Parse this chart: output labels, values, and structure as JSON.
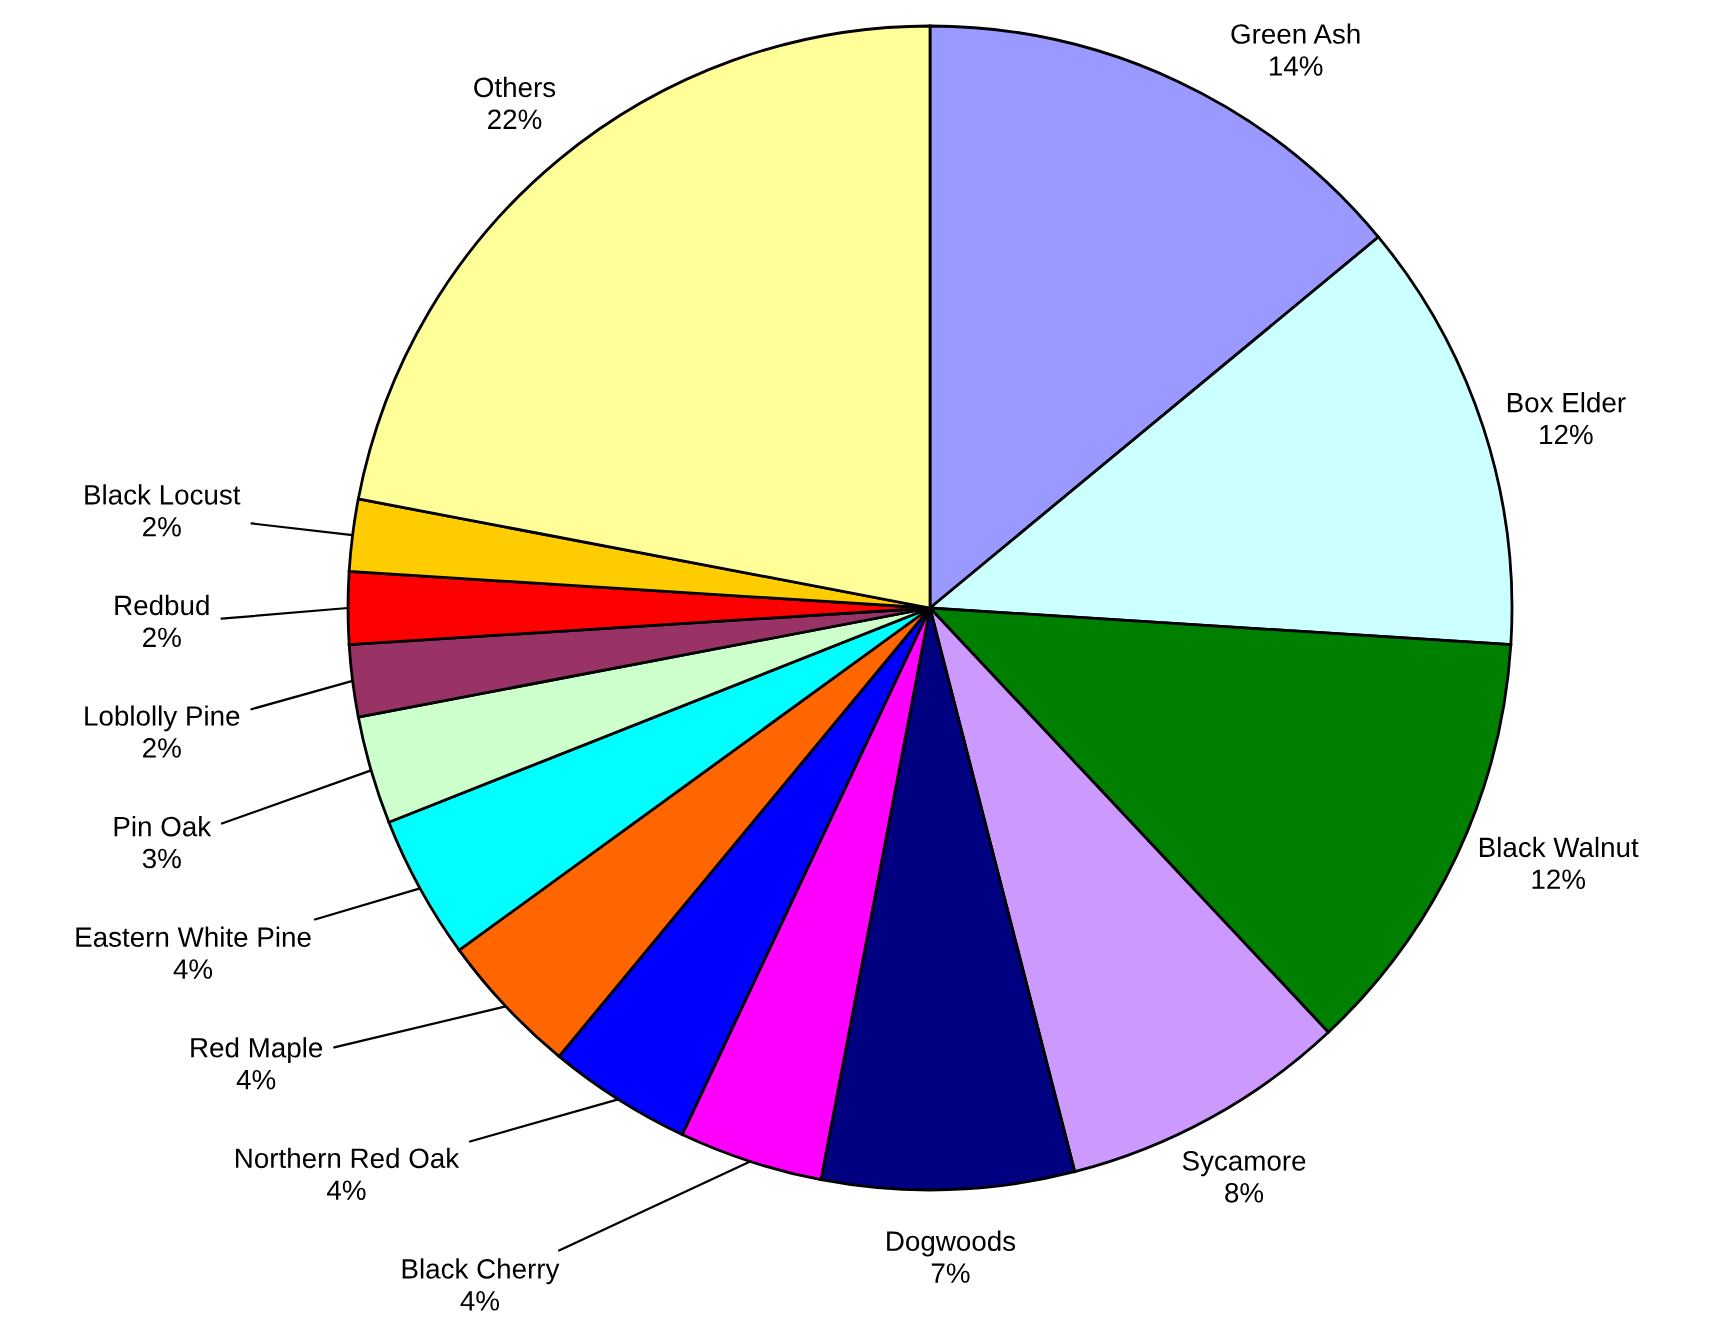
{
  "chart_data": {
    "type": "pie",
    "categories": [
      "Green Ash",
      "Box Elder",
      "Black Walnut",
      "Sycamore",
      "Dogwoods",
      "Black Cherry",
      "Northern Red Oak",
      "Red Maple",
      "Eastern White Pine",
      "Pin Oak",
      "Loblolly Pine",
      "Redbud",
      "Black Locust",
      "Others"
    ],
    "values": [
      14,
      12,
      12,
      8,
      7,
      4,
      4,
      4,
      4,
      3,
      2,
      2,
      2,
      22
    ],
    "value_labels": [
      "14%",
      "12%",
      "12%",
      "8%",
      "7%",
      "4%",
      "4%",
      "4%",
      "4%",
      "3%",
      "2%",
      "2%",
      "2%",
      "22%"
    ],
    "colors": [
      "#9999ff",
      "#ccffff",
      "#008000",
      "#cc99ff",
      "#000080",
      "#ff00ff",
      "#0000ff",
      "#ff6600",
      "#00ffff",
      "#ccffcc",
      "#993366",
      "#ff0000",
      "#ffcc00",
      "#ffff99"
    ]
  }
}
